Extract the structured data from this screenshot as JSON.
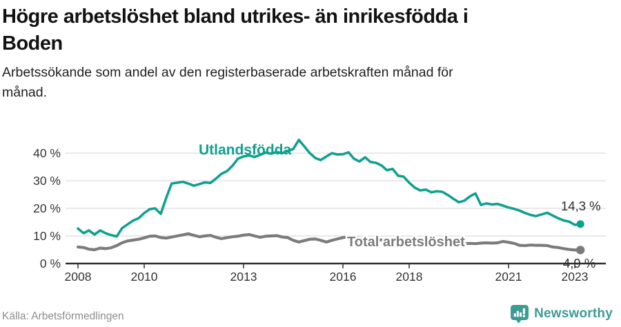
{
  "header": {
    "title": "Högre arbetslöshet bland utrikes- än inrikesfödda i Boden",
    "title_lines": [
      "Högre arbetslöshet bland utrikes- än inrikesfödda i",
      "Boden"
    ],
    "subtitle": "Arbetssökande som andel av den registerbaserade arbetskraften månad för månad.",
    "subtitle_lines": [
      "Arbetssökande som andel av den registerbaserade arbetskraften månad för",
      "månad."
    ]
  },
  "footer": {
    "source": "Källa: Arbetsförmedlingen",
    "brand": "Newsworthy",
    "brand_icon": "newsworthy-bars-icon",
    "brand_color": "#3D9B91"
  },
  "colors": {
    "utlandsfodda": "#10A08F",
    "total": "#7B7B7B",
    "grid": "#dcdcdc",
    "axis": "#2f2f2f",
    "axis_text": "#333333",
    "end_label_text": "#2b2b2b"
  },
  "chart_data": {
    "type": "line",
    "title": "Högre arbetslöshet bland utrikes- än inrikesfödda i Boden",
    "subtitle": "Arbetssökande som andel av den registerbaserade arbetskraften månad för månad.",
    "source": "Källa: Arbetsförmedlingen",
    "legend": "inline-labels",
    "grid": "horizontal",
    "xlim": [
      2008,
      2023.5
    ],
    "ylim": [
      0,
      46
    ],
    "yticks": [
      {
        "v": 0,
        "label": "0 %"
      },
      {
        "v": 10,
        "label": "10 %"
      },
      {
        "v": 20,
        "label": "20 %"
      },
      {
        "v": 30,
        "label": "30 %"
      },
      {
        "v": 40,
        "label": "40 %"
      }
    ],
    "xticks": [
      {
        "v": 2008,
        "label": "2008"
      },
      {
        "v": 2010,
        "label": "2010"
      },
      {
        "v": 2013,
        "label": "2013"
      },
      {
        "v": 2016,
        "label": "2016"
      },
      {
        "v": 2018,
        "label": "2018"
      },
      {
        "v": 2021,
        "label": "2021"
      },
      {
        "v": 2023,
        "label": "2023"
      }
    ],
    "x": [
      2008,
      2008.17,
      2008.33,
      2008.5,
      2008.67,
      2008.83,
      2009,
      2009.17,
      2009.33,
      2009.5,
      2009.67,
      2009.83,
      2010,
      2010.17,
      2010.33,
      2010.5,
      2010.67,
      2010.83,
      2011,
      2011.17,
      2011.33,
      2011.5,
      2011.67,
      2011.83,
      2012,
      2012.17,
      2012.33,
      2012.5,
      2012.67,
      2012.83,
      2013,
      2013.17,
      2013.33,
      2013.5,
      2013.67,
      2013.83,
      2014,
      2014.17,
      2014.33,
      2014.5,
      2014.67,
      2014.83,
      2015,
      2015.17,
      2015.33,
      2015.5,
      2015.67,
      2015.83,
      2016,
      2016.17,
      2016.33,
      2016.5,
      2016.67,
      2016.83,
      2017,
      2017.17,
      2017.33,
      2017.5,
      2017.67,
      2017.83,
      2018,
      2018.17,
      2018.33,
      2018.5,
      2018.67,
      2018.83,
      2019,
      2019.17,
      2019.33,
      2019.5,
      2019.67,
      2019.83,
      2020,
      2020.17,
      2020.33,
      2020.5,
      2020.67,
      2020.83,
      2021,
      2021.17,
      2021.33,
      2021.5,
      2021.67,
      2021.83,
      2022,
      2022.17,
      2022.33,
      2022.5,
      2022.67,
      2022.83,
      2023,
      2023.17
    ],
    "series": [
      {
        "name": "Utlandsfödda",
        "color": "#10A08F",
        "end_label": "14,3 %",
        "end_value": 14.3,
        "values": [
          12.7,
          11.0,
          12.0,
          10.5,
          12.0,
          11.0,
          10.3,
          9.8,
          12.8,
          14.2,
          15.6,
          16.4,
          18.3,
          19.7,
          20.0,
          18.0,
          24.0,
          29.0,
          29.3,
          29.6,
          29.0,
          28.2,
          28.8,
          29.4,
          29.2,
          30.8,
          32.5,
          33.5,
          35.5,
          38.0,
          38.8,
          39.2,
          38.6,
          39.4,
          40.2,
          39.8,
          40.4,
          40.0,
          40.8,
          41.5,
          44.8,
          42.5,
          40.0,
          38.2,
          37.5,
          38.8,
          40.0,
          39.5,
          39.6,
          40.3,
          38.0,
          37.0,
          38.5,
          36.8,
          36.5,
          35.5,
          33.8,
          34.3,
          31.8,
          31.5,
          29.3,
          27.5,
          26.5,
          26.8,
          25.8,
          26.2,
          26.0,
          24.8,
          23.5,
          22.2,
          22.8,
          24.3,
          25.4,
          21.2,
          21.8,
          21.4,
          21.6,
          21.0,
          20.3,
          19.8,
          19.2,
          18.3,
          17.6,
          17.2,
          17.8,
          18.4,
          17.4,
          16.4,
          15.6,
          15.2,
          14.0,
          14.3
        ]
      },
      {
        "name": "Total arbetslöshet",
        "color": "#7B7B7B",
        "end_label": "4,9 %",
        "end_value": 4.9,
        "values": [
          6.0,
          5.8,
          5.2,
          5.0,
          5.6,
          5.4,
          5.7,
          6.5,
          7.5,
          8.2,
          8.5,
          8.8,
          9.3,
          9.9,
          10.0,
          9.4,
          9.2,
          9.6,
          10.0,
          10.4,
          10.8,
          10.2,
          9.7,
          10.0,
          10.2,
          9.5,
          9.0,
          9.4,
          9.7,
          9.9,
          10.3,
          10.5,
          10.0,
          9.5,
          9.9,
          10.0,
          10.1,
          9.6,
          9.4,
          8.4,
          7.8,
          8.3,
          8.8,
          8.9,
          8.4,
          7.8,
          8.4,
          8.9,
          9.4,
          9.7,
          9.4,
          9.1,
          8.9,
          8.7,
          8.6,
          8.5,
          8.3,
          8.1,
          8.0,
          7.9,
          7.8,
          7.7,
          7.5,
          7.4,
          7.3,
          7.2,
          7.1,
          7.0,
          7.0,
          7.1,
          7.2,
          7.3,
          7.2,
          7.4,
          7.5,
          7.4,
          7.5,
          8.0,
          7.7,
          7.3,
          6.6,
          6.5,
          6.7,
          6.6,
          6.6,
          6.5,
          6.0,
          5.8,
          5.4,
          5.1,
          4.9,
          4.9
        ]
      }
    ]
  }
}
